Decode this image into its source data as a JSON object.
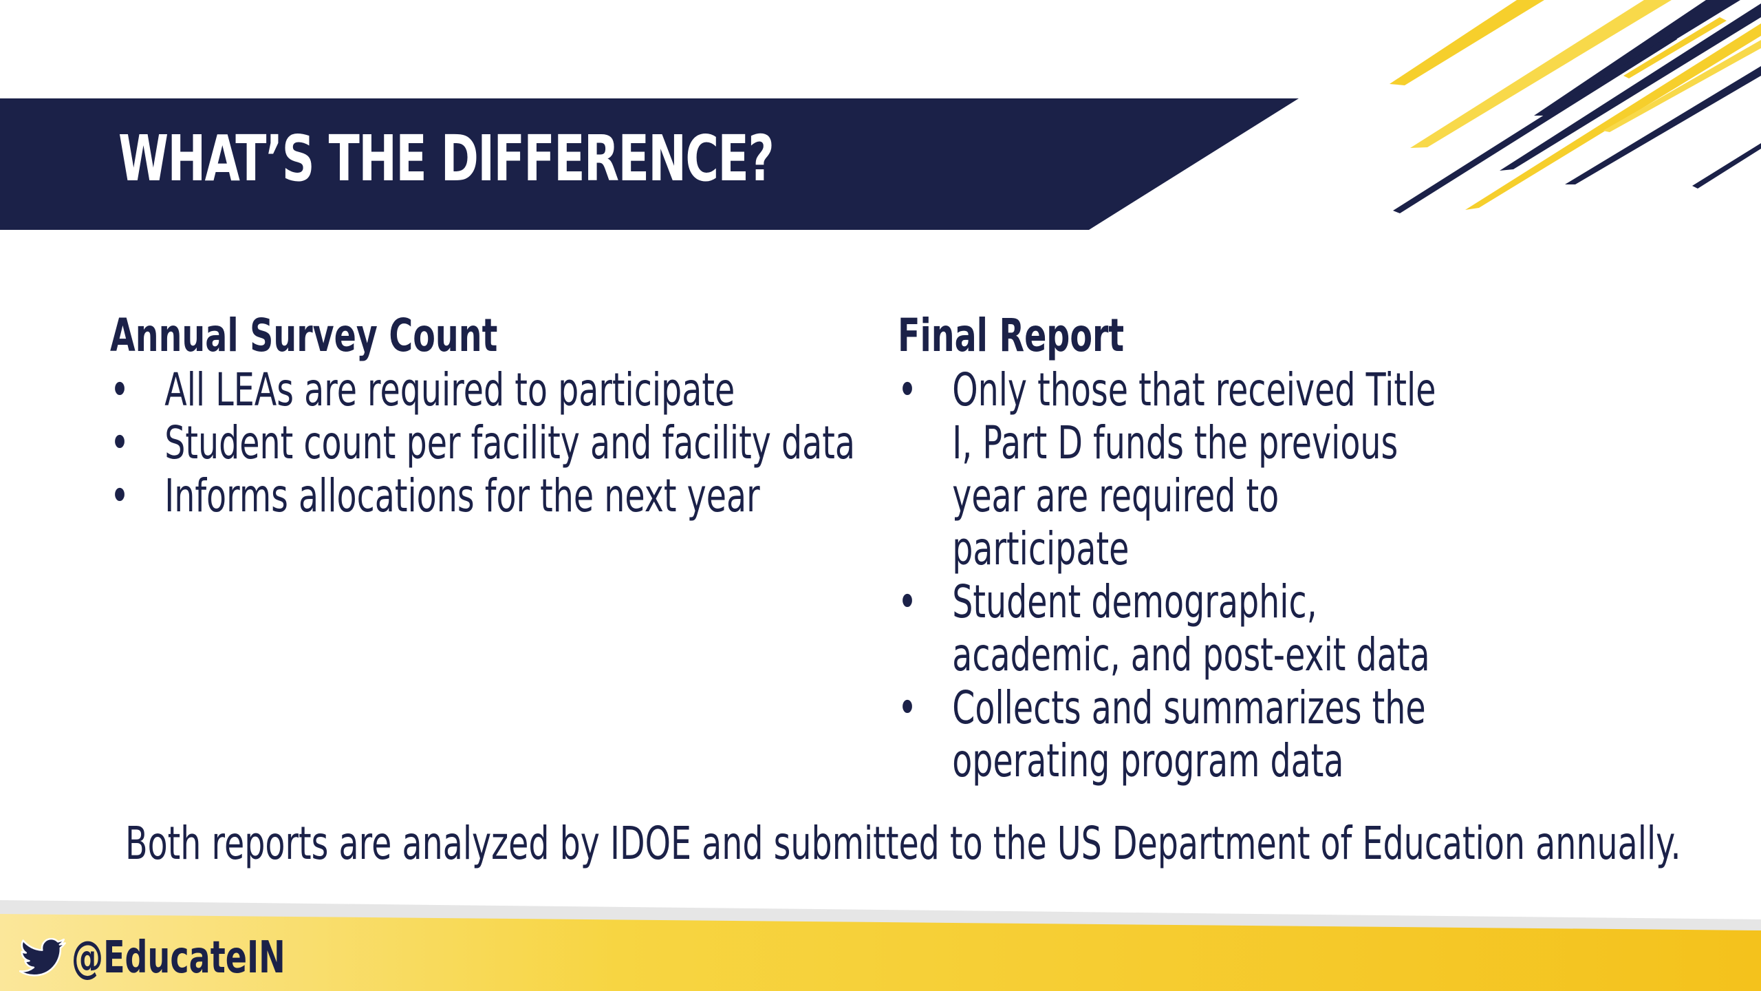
{
  "slide": {
    "title": "WHAT’S THE DIFFERENCE?",
    "left_column": {
      "heading": "Annual Survey Count",
      "bullets": [
        "All LEAs are required to participate",
        "Student count per facility and facility data",
        "Informs allocations for the next year"
      ]
    },
    "right_column": {
      "heading": "Final Report",
      "bullets": [
        "Only those that received Title I, Part D funds the previous year are required to participate",
        "Student demographic, academic, and post-exit data",
        "Collects and summarizes the operating program data"
      ]
    },
    "footer_note": "Both reports are analyzed by IDOE and submitted to the US Department of Education annually.",
    "social_handle": "@EducateIN",
    "bullet_glyph": "•"
  },
  "icons": {
    "social": "twitter-bird-icon"
  },
  "colors": {
    "navy": "#1b2148",
    "gold": "#f5c722",
    "white": "#ffffff"
  }
}
